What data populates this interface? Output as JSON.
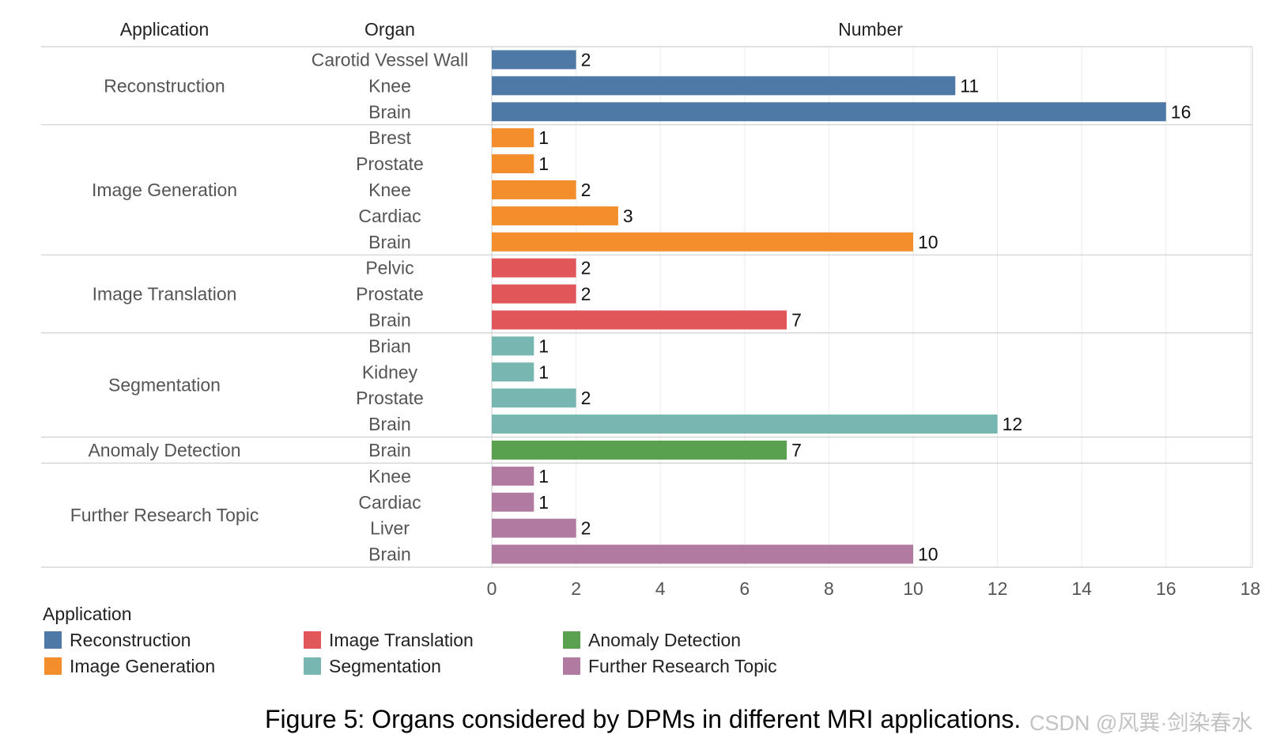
{
  "chart_data": {
    "type": "bar",
    "orientation": "horizontal",
    "headers": {
      "application": "Application",
      "organ": "Organ",
      "number": "Number"
    },
    "xlim": [
      0,
      18
    ],
    "x_ticks": [
      0,
      2,
      4,
      6,
      8,
      10,
      12,
      14,
      16,
      18
    ],
    "grid": true,
    "groups": [
      {
        "application": "Reconstruction",
        "color": "#4e79a7",
        "bars": [
          {
            "organ": "Carotid Vessel Wall",
            "value": 2
          },
          {
            "organ": "Knee",
            "value": 11
          },
          {
            "organ": "Brain",
            "value": 16
          }
        ]
      },
      {
        "application": "Image Generation",
        "color": "#f28e2b",
        "bars": [
          {
            "organ": "Brest",
            "value": 1
          },
          {
            "organ": "Prostate",
            "value": 1
          },
          {
            "organ": "Knee",
            "value": 2
          },
          {
            "organ": "Cardiac",
            "value": 3
          },
          {
            "organ": "Brain",
            "value": 10
          }
        ]
      },
      {
        "application": "Image Translation",
        "color": "#e15759",
        "bars": [
          {
            "organ": "Pelvic",
            "value": 2
          },
          {
            "organ": "Prostate",
            "value": 2
          },
          {
            "organ": "Brain",
            "value": 7
          }
        ]
      },
      {
        "application": "Segmentation",
        "color": "#76b7b2",
        "bars": [
          {
            "organ": "Brian",
            "value": 1
          },
          {
            "organ": "Kidney",
            "value": 1
          },
          {
            "organ": "Prostate",
            "value": 2
          },
          {
            "organ": "Brain",
            "value": 12
          }
        ]
      },
      {
        "application": "Anomaly Detection",
        "color": "#59a14f",
        "bars": [
          {
            "organ": "Brain",
            "value": 7
          }
        ]
      },
      {
        "application": "Further Research Topic",
        "color": "#b07aa1",
        "bars": [
          {
            "organ": "Knee",
            "value": 1
          },
          {
            "organ": "Cardiac",
            "value": 1
          },
          {
            "organ": "Liver",
            "value": 2
          },
          {
            "organ": "Brain",
            "value": 10
          }
        ]
      }
    ],
    "legend": {
      "title": "Application",
      "position": "bottom-left",
      "entries": [
        {
          "label": "Reconstruction",
          "color": "#4e79a7"
        },
        {
          "label": "Image Generation",
          "color": "#f28e2b"
        },
        {
          "label": "Image Translation",
          "color": "#e15759"
        },
        {
          "label": "Segmentation",
          "color": "#76b7b2"
        },
        {
          "label": "Anomaly Detection",
          "color": "#59a14f"
        },
        {
          "label": "Further Research Topic",
          "color": "#b07aa1"
        }
      ]
    },
    "caption": "Figure 5: Organs considered by DPMs in different MRI applications."
  },
  "watermark": "CSDN @风巽·剑染春水"
}
